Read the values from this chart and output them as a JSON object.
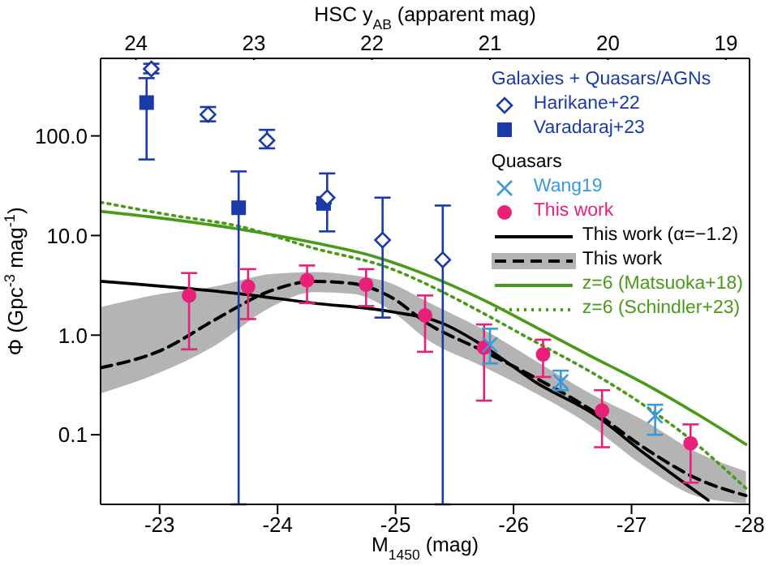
{
  "chart_data": {
    "type": "scatter",
    "xlabel": "M$_{1450}$ (mag)",
    "ylabel": "Φ (Gpc$^{-3}$ mag$^{-1}$)",
    "x2label": "HSC y$_{AB}$ (apparent mag)",
    "xlim": [
      -22.5,
      -28
    ],
    "xticks": [
      -23,
      -24,
      -25,
      -26,
      -27,
      -28
    ],
    "x2lim": [
      24.3,
      18.8
    ],
    "x2ticks": [
      24,
      23,
      22,
      21,
      20,
      19
    ],
    "ylim": [
      0.02,
      600
    ],
    "yticks": [
      {
        "value": 0.1,
        "label": "0.1"
      },
      {
        "value": 1,
        "label": "1.0"
      },
      {
        "value": 10,
        "label": "10.0"
      },
      {
        "value": 100,
        "label": "100.0"
      }
    ],
    "log": "y",
    "legend": "top right",
    "annotations": [
      "Galaxies + Quasars/AGNs",
      "Quasars"
    ],
    "series": [
      {
        "name": "Harikane+22",
        "marker": "diamond",
        "color": "#1a3aa8",
        "x": [
          -22.93,
          -23.41,
          -23.91,
          -24.42,
          -24.89,
          -25.4
        ],
        "values": [
          470,
          164,
          90,
          24,
          9,
          5.7
        ],
        "errors": [
          [
            425,
            530
          ],
          [
            140,
            195
          ],
          [
            75,
            115
          ],
          [
            11,
            42
          ],
          [
            1.5,
            24
          ],
          [
            0.02,
            20
          ]
        ]
      },
      {
        "name": "Varadaraj+23",
        "marker": "square",
        "color": "#1a3aa8",
        "x": [
          -22.89,
          -23.67,
          -24.39
        ],
        "values": [
          216,
          19,
          21
        ],
        "errors": [
          [
            58,
            380
          ],
          [
            0.02,
            44
          ],
          null
        ]
      },
      {
        "name": "Wang19",
        "marker": "cross",
        "color": "#3a9ad9",
        "x": [
          -25.8,
          -26.4,
          -27.2
        ],
        "values": [
          0.8,
          0.34,
          0.155
        ],
        "errors": [
          [
            0.52,
            1.16
          ],
          [
            0.28,
            0.44
          ],
          [
            0.1,
            0.2
          ]
        ]
      },
      {
        "name": "This work",
        "marker": "circle",
        "color": "#e8207a",
        "x": [
          -23.25,
          -23.75,
          -24.25,
          -24.75,
          -25.25,
          -25.75,
          -26.25,
          -26.75,
          -27.5
        ],
        "values": [
          2.5,
          3.06,
          3.56,
          3.22,
          1.58,
          0.75,
          0.64,
          0.175,
          0.082
        ],
        "errors": [
          [
            0.72,
            4.2
          ],
          [
            1.45,
            4.6
          ],
          [
            2.1,
            5.0
          ],
          [
            1.96,
            4.6
          ],
          [
            0.68,
            2.5
          ],
          [
            0.22,
            1.28
          ],
          [
            0.38,
            0.9
          ],
          [
            0.075,
            0.28
          ],
          [
            0.033,
            0.127
          ]
        ]
      },
      {
        "name": "This work (α=−1.2)",
        "type": "line",
        "line_style": "solid",
        "color": "#000000",
        "x": [
          -22.5,
          -23.67,
          -24.3,
          -24.95,
          -25.4,
          -25.73,
          -26.19,
          -26.69,
          -27.1,
          -27.65
        ],
        "values": [
          3.47,
          2.61,
          2.1,
          1.73,
          1.31,
          0.8,
          0.335,
          0.158,
          0.066,
          0.022
        ]
      },
      {
        "name": "This work",
        "type": "line",
        "line_style": "dashed",
        "color": "#000000",
        "x": [
          -22.5,
          -23.02,
          -23.48,
          -23.94,
          -24.31,
          -24.63,
          -24.95,
          -25.27,
          -25.73,
          -26.19,
          -26.65,
          -27.1,
          -27.56,
          -27.97
        ],
        "values": [
          0.47,
          0.71,
          1.45,
          2.78,
          3.47,
          3.3,
          2.45,
          1.31,
          0.705,
          0.37,
          0.18,
          0.075,
          0.036,
          0.0245
        ],
        "lower": [
          0.26,
          0.43,
          0.8,
          1.9,
          2.7,
          2.6,
          1.8,
          0.9,
          0.49,
          0.26,
          0.124,
          0.049,
          0.024,
          0.0205
        ],
        "upper": [
          1.91,
          2.6,
          3.1,
          4.1,
          4.3,
          4.0,
          3.35,
          2.16,
          1.16,
          0.55,
          0.26,
          0.14,
          0.066,
          0.043
        ]
      },
      {
        "name": "z=6 (Matsuoka+18)",
        "type": "line",
        "line_style": "solid",
        "color": "#4a9a1a",
        "x": [
          -22.5,
          -23.1,
          -23.67,
          -24.3,
          -24.81,
          -25.27,
          -25.73,
          -26.19,
          -26.65,
          -27.1,
          -27.56,
          -27.97
        ],
        "values": [
          17.5,
          14.5,
          11.6,
          8.5,
          6.2,
          4.0,
          2.3,
          1.2,
          0.62,
          0.33,
          0.16,
          0.08
        ]
      },
      {
        "name": "z=6 (Schindler+23)",
        "type": "line",
        "line_style": "dotted",
        "color": "#4a9a1a",
        "x": [
          -22.5,
          -23.1,
          -23.67,
          -24.3,
          -24.95,
          -25.35,
          -25.73,
          -26.19,
          -26.65,
          -27.1,
          -27.47,
          -27.97
        ],
        "values": [
          21.6,
          16,
          12.4,
          7.5,
          4.7,
          2.9,
          1.69,
          0.85,
          0.43,
          0.2,
          0.096,
          0.029
        ]
      }
    ]
  }
}
